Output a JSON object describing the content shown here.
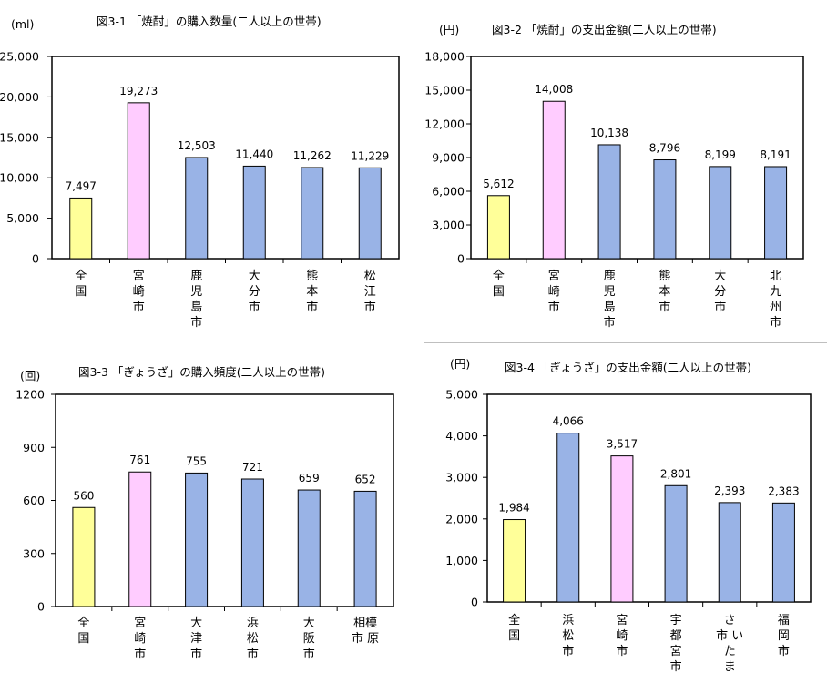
{
  "colors": {
    "national": "#ffff99",
    "miyazaki": "#ffccff",
    "other": "#99b3e6",
    "stroke": "#000000"
  },
  "chart_data": [
    {
      "type": "bar",
      "title": "図3-1 「焼酎」の購入数量(二人以上の世帯)",
      "unit": "(ml)",
      "categories": [
        "全国",
        "宮崎市",
        "鹿児島市",
        "大分市",
        "熊本市",
        "松江市"
      ],
      "category_labels": [
        [
          "全",
          "国"
        ],
        [
          "宮",
          "崎",
          "市"
        ],
        [
          "鹿",
          "児",
          "島",
          "市"
        ],
        [
          "大",
          "分",
          "市"
        ],
        [
          "熊",
          "本",
          "市"
        ],
        [
          "松",
          "江",
          "市"
        ]
      ],
      "values": [
        7497,
        19273,
        12503,
        11440,
        11262,
        11229
      ],
      "value_labels": [
        "7,497",
        "19,273",
        "12,503",
        "11,440",
        "11,262",
        "11,229"
      ],
      "bar_colors": [
        "national",
        "miyazaki",
        "other",
        "other",
        "other",
        "other"
      ],
      "ylim": [
        0,
        25000
      ],
      "ytick_values": [
        0,
        5000,
        10000,
        15000,
        20000,
        25000
      ],
      "ytick_labels": [
        "0",
        "5,000",
        "10,000",
        "15,000",
        "20,000",
        "25,000"
      ],
      "grid": false
    },
    {
      "type": "bar",
      "title": "図3-2 「焼酎」の支出金額(二人以上の世帯)",
      "unit": "(円)",
      "categories": [
        "全国",
        "宮崎市",
        "鹿児島市",
        "熊本市",
        "大分市",
        "北九州市"
      ],
      "category_labels": [
        [
          "全",
          "国"
        ],
        [
          "宮",
          "崎",
          "市"
        ],
        [
          "鹿",
          "児",
          "島",
          "市"
        ],
        [
          "熊",
          "本",
          "市"
        ],
        [
          "大",
          "分",
          "市"
        ],
        [
          "北",
          "九",
          "州",
          "市"
        ]
      ],
      "values": [
        5612,
        14008,
        10138,
        8796,
        8199,
        8191
      ],
      "value_labels": [
        "5,612",
        "14,008",
        "10,138",
        "8,796",
        "8,199",
        "8,191"
      ],
      "bar_colors": [
        "national",
        "miyazaki",
        "other",
        "other",
        "other",
        "other"
      ],
      "ylim": [
        0,
        18000
      ],
      "ytick_values": [
        0,
        3000,
        6000,
        9000,
        12000,
        15000,
        18000
      ],
      "ytick_labels": [
        "0",
        "3,000",
        "6,000",
        "9,000",
        "12,000",
        "15,000",
        "18,000"
      ],
      "grid": false
    },
    {
      "type": "bar",
      "title": "図3-3 「ぎょうざ」の購入頻度(二人以上の世帯)",
      "unit": "(回)",
      "categories": [
        "全国",
        "宮崎市",
        "大津市",
        "浜松市",
        "大阪市",
        "相模原市"
      ],
      "category_labels": [
        [
          "全",
          "国"
        ],
        [
          "宮",
          "崎",
          "市"
        ],
        [
          "大",
          "津",
          "市"
        ],
        [
          "浜",
          "松",
          "市"
        ],
        [
          "大",
          "阪",
          "市"
        ],
        [
          "相模",
          "市 原"
        ]
      ],
      "values": [
        560,
        761,
        755,
        721,
        659,
        652
      ],
      "value_labels": [
        "560",
        "761",
        "755",
        "721",
        "659",
        "652"
      ],
      "bar_colors": [
        "national",
        "miyazaki",
        "other",
        "other",
        "other",
        "other"
      ],
      "ylim": [
        0,
        1200
      ],
      "ytick_values": [
        0,
        300,
        600,
        900,
        1200
      ],
      "ytick_labels": [
        "0",
        "300",
        "600",
        "900",
        "1200"
      ],
      "grid": false
    },
    {
      "type": "bar",
      "title": "図3-4 「ぎょうざ」の支出金額(二人以上の世帯)",
      "unit": "(円)",
      "categories": [
        "全国",
        "浜松市",
        "宮崎市",
        "宇都宮市",
        "さいたま市",
        "福岡市"
      ],
      "category_labels": [
        [
          "全",
          "国"
        ],
        [
          "浜",
          "松",
          "市"
        ],
        [
          "宮",
          "崎",
          "市"
        ],
        [
          "宇",
          "都",
          "宮",
          "市"
        ],
        [
          "さ",
          "市 い",
          "た",
          "ま"
        ],
        [
          "福",
          "岡",
          "市"
        ]
      ],
      "values": [
        1984,
        4066,
        3517,
        2801,
        2393,
        2383
      ],
      "value_labels": [
        "1,984",
        "4,066",
        "3,517",
        "2,801",
        "2,393",
        "2,383"
      ],
      "bar_colors": [
        "national",
        "other",
        "miyazaki",
        "other",
        "other",
        "other"
      ],
      "ylim": [
        0,
        5000
      ],
      "ytick_values": [
        0,
        1000,
        2000,
        3000,
        4000,
        5000
      ],
      "ytick_labels": [
        "0",
        "1,000",
        "2,000",
        "3,000",
        "4,000",
        "5,000"
      ],
      "grid": false
    }
  ]
}
